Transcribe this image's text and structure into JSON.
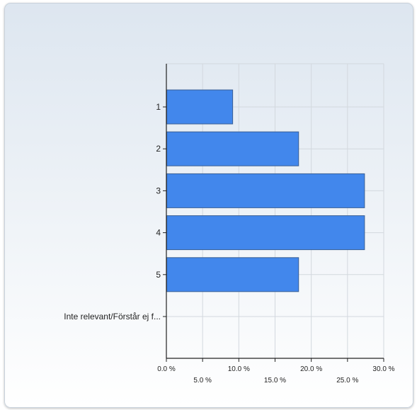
{
  "chart_data": {
    "type": "bar",
    "orientation": "horizontal",
    "title": "",
    "xlabel": "",
    "ylabel": "",
    "categories": [
      "1",
      "2",
      "3",
      "4",
      "5",
      "Inte relevant/Förstår ej f..."
    ],
    "values": [
      9.1,
      18.2,
      27.3,
      27.3,
      18.2,
      0
    ],
    "xlim": [
      0,
      30
    ],
    "x_ticks": [
      {
        "value": 0,
        "label": "0.0 %"
      },
      {
        "value": 5,
        "label": "5.0 %"
      },
      {
        "value": 10,
        "label": "10.0 %"
      },
      {
        "value": 15,
        "label": "15.0 %"
      },
      {
        "value": 20,
        "label": "20.0 %"
      },
      {
        "value": 25,
        "label": "25.0 %"
      },
      {
        "value": 30,
        "label": "30.0 %"
      }
    ],
    "grid": true,
    "bar_color": "#4287ec",
    "bar_border_color": "#3a5f95"
  }
}
